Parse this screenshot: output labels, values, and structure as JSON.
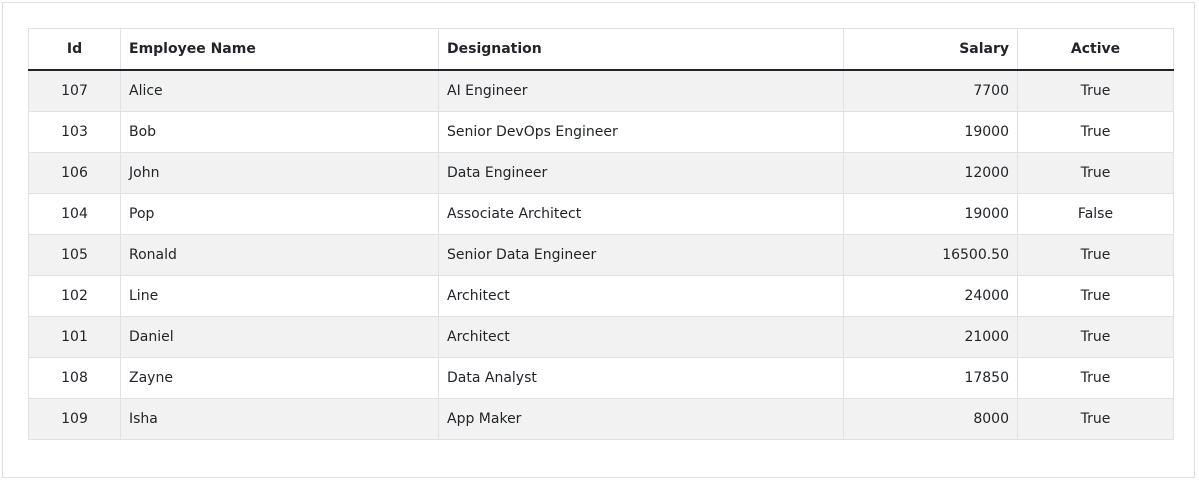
{
  "table": {
    "headers": {
      "id": "Id",
      "name": "Employee Name",
      "designation": "Designation",
      "salary": "Salary",
      "active": "Active"
    },
    "rows": [
      {
        "id": "107",
        "name": "Alice",
        "designation": "AI Engineer",
        "salary": "7700",
        "active": "True"
      },
      {
        "id": "103",
        "name": "Bob",
        "designation": "Senior DevOps Engineer",
        "salary": "19000",
        "active": "True"
      },
      {
        "id": "106",
        "name": "John",
        "designation": "Data Engineer",
        "salary": "12000",
        "active": "True"
      },
      {
        "id": "104",
        "name": "Pop",
        "designation": "Associate Architect",
        "salary": "19000",
        "active": "False"
      },
      {
        "id": "105",
        "name": "Ronald",
        "designation": "Senior Data Engineer",
        "salary": "16500.50",
        "active": "True"
      },
      {
        "id": "102",
        "name": "Line",
        "designation": "Architect",
        "salary": "24000",
        "active": "True"
      },
      {
        "id": "101",
        "name": "Daniel",
        "designation": "Architect",
        "salary": "21000",
        "active": "True"
      },
      {
        "id": "108",
        "name": "Zayne",
        "designation": "Data Analyst",
        "salary": "17850",
        "active": "True"
      },
      {
        "id": "109",
        "name": "Isha",
        "designation": "App Maker",
        "salary": "8000",
        "active": "True"
      }
    ]
  }
}
